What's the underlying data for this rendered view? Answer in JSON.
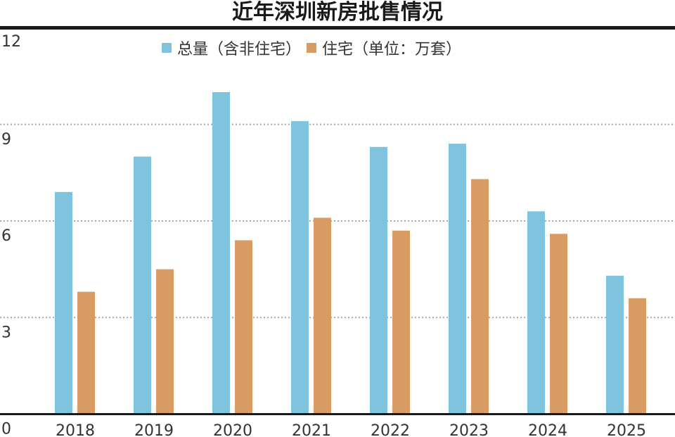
{
  "chart_data": {
    "type": "bar",
    "title": "近年深圳新房批售情况",
    "categories": [
      "2018",
      "2019",
      "2020",
      "2021",
      "2022",
      "2023",
      "2024",
      "2025"
    ],
    "series": [
      {
        "name": "总量（含非住宅）",
        "color": "#7fc3de",
        "values": [
          6.9,
          8.0,
          10.0,
          9.1,
          8.3,
          8.4,
          6.3,
          4.3
        ]
      },
      {
        "name": "住宅（单位：万套）",
        "color": "#d79b63",
        "values": [
          3.8,
          4.5,
          5.4,
          6.1,
          5.7,
          7.3,
          5.6,
          3.6
        ]
      }
    ],
    "ylim": [
      0,
      12
    ],
    "yticks": [
      "0",
      "3",
      "6",
      "9",
      "12"
    ],
    "grid": true,
    "legend": "top-center"
  }
}
